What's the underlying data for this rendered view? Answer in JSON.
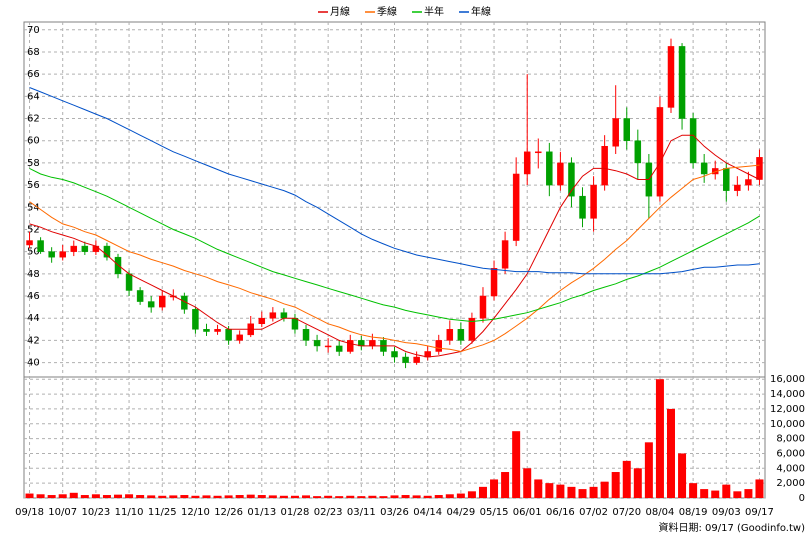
{
  "chart_data": [
    {
      "type": "candlestick",
      "open": [
        50.6,
        51,
        50,
        49.5,
        50,
        50.5,
        50,
        50.5,
        49.5,
        48,
        46.5,
        45.5,
        45,
        46,
        46,
        44.8,
        43,
        42.8,
        43,
        42,
        42.5,
        43.5,
        44,
        44.5,
        44,
        43,
        42,
        41.5,
        41.5,
        41,
        42,
        41.5,
        42,
        41,
        40.5,
        40,
        40.5,
        41,
        42,
        43,
        42,
        44,
        46,
        48.5,
        51,
        57,
        59,
        59,
        56,
        58,
        55,
        53,
        56,
        59.5,
        62,
        60,
        58,
        55,
        63,
        68.5,
        62,
        58,
        57,
        57.5,
        55.5,
        56,
        56.5
      ],
      "high": [
        51.8,
        51.3,
        50.4,
        50.6,
        51,
        50.9,
        51,
        50.8,
        49.8,
        48.3,
        46.8,
        46,
        46.5,
        46.6,
        46.3,
        45,
        43.5,
        43.4,
        43.3,
        42.9,
        44.2,
        44.6,
        45,
        44.9,
        44.4,
        43.4,
        42.5,
        42.2,
        42,
        42.5,
        42.4,
        42.6,
        42.3,
        41.4,
        40.9,
        41,
        41.5,
        42.5,
        43.8,
        43.6,
        44.5,
        46.8,
        49.2,
        51.8,
        58.5,
        66,
        60.2,
        59.8,
        59,
        58.5,
        55.8,
        56.8,
        60.5,
        65,
        63,
        61,
        58.8,
        64,
        69.2,
        68.8,
        62.5,
        58.8,
        58.2,
        58,
        56.8,
        57.2,
        59.2
      ],
      "low": [
        50.3,
        49.8,
        49,
        49.2,
        49.6,
        49.7,
        49.7,
        49.2,
        47.6,
        46,
        45.2,
        44.5,
        44.7,
        45.6,
        44.4,
        42.6,
        42.4,
        42.5,
        41.6,
        41.7,
        42.3,
        43.2,
        43.7,
        43.7,
        42.6,
        41.5,
        41,
        40.9,
        40.6,
        40.8,
        41.1,
        41.2,
        40.6,
        40,
        39.5,
        39.8,
        40.2,
        40.7,
        41.6,
        41.6,
        41.7,
        43.6,
        45.6,
        48,
        50.5,
        56,
        57.5,
        55,
        55.5,
        54,
        52.2,
        51.8,
        55.5,
        58.8,
        59.2,
        56.5,
        53,
        54.5,
        62.5,
        61,
        57.5,
        56.2,
        56.5,
        54.5,
        55,
        55.5,
        56
      ],
      "close": [
        51,
        50,
        49.5,
        50,
        50.5,
        50,
        50.5,
        49.5,
        48,
        46.5,
        45.5,
        45,
        46,
        46,
        44.8,
        43,
        42.8,
        43,
        42,
        42.5,
        43.5,
        44,
        44.5,
        44,
        43,
        42,
        41.5,
        41.5,
        41,
        42,
        41.5,
        42,
        41,
        40.5,
        40,
        40.5,
        41,
        42,
        43,
        42,
        44,
        46,
        48.5,
        51,
        57,
        59,
        59,
        56,
        58,
        55,
        53,
        56,
        59.5,
        62,
        60,
        58,
        55,
        63,
        68.5,
        62,
        58,
        57,
        57.5,
        55.5,
        56,
        56.5,
        58.5
      ],
      "up_color": "#ff0000",
      "down_color": "#00a000",
      "ylim": [
        38.7,
        70.7
      ],
      "yticks": [
        40,
        42,
        44,
        46,
        48,
        50,
        52,
        54,
        56,
        58,
        60,
        62,
        64,
        66,
        68,
        70
      ],
      "grid": true,
      "legend": "top",
      "series": [
        {
          "name": "月線",
          "color": "#e00000",
          "values": [
            52.5,
            52.2,
            51.8,
            51.5,
            51.2,
            50.8,
            50.5,
            49.7,
            48.8,
            48,
            47.5,
            47,
            46.5,
            46,
            45.5,
            45,
            44.3,
            43.6,
            43,
            43,
            43,
            43,
            43.5,
            44,
            44,
            43.5,
            43,
            42.5,
            42,
            41.7,
            41.5,
            41.5,
            41.5,
            41.5,
            41,
            40.7,
            40.5,
            40.6,
            40.8,
            41,
            41.8,
            42.8,
            44,
            45.3,
            46.6,
            48,
            50,
            52,
            54,
            55.5,
            56.8,
            57.5,
            57.5,
            57.3,
            57,
            56.5,
            56.5,
            58,
            60,
            60.5,
            60.5,
            59.5,
            58.7,
            58,
            57.5,
            57,
            56.5
          ]
        },
        {
          "name": "季線",
          "color": "#ff6a00",
          "values": [
            54.5,
            53.8,
            53.1,
            52.5,
            52.2,
            51.8,
            51.5,
            51,
            50.5,
            50,
            49.7,
            49.3,
            49,
            48.7,
            48.3,
            48,
            47.7,
            47.3,
            47,
            46.7,
            46.3,
            46,
            45.7,
            45.3,
            45,
            44.5,
            44,
            43.5,
            43.2,
            42.8,
            42.5,
            42.3,
            42.2,
            42,
            41.8,
            41.7,
            41.5,
            41.3,
            41.2,
            41,
            41.3,
            41.6,
            42,
            42.6,
            43.3,
            44,
            44.8,
            45.7,
            46.5,
            47.2,
            47.8,
            48.5,
            49.3,
            50.2,
            51,
            52,
            53,
            54,
            54.9,
            55.7,
            56.5,
            56.8,
            57.2,
            57.5,
            57.6,
            57.7,
            57.8
          ]
        },
        {
          "name": "半年",
          "color": "#00c000",
          "values": [
            57.5,
            57,
            56.7,
            56.5,
            56.2,
            55.8,
            55.4,
            55,
            54.5,
            54,
            53.5,
            53,
            52.5,
            52,
            51.6,
            51.2,
            50.7,
            50.2,
            49.8,
            49.4,
            49,
            48.6,
            48.2,
            47.9,
            47.6,
            47.3,
            47,
            46.7,
            46.4,
            46.1,
            45.8,
            45.5,
            45.2,
            45,
            44.7,
            44.5,
            44.3,
            44.1,
            43.9,
            43.8,
            43.7,
            43.8,
            43.9,
            44.1,
            44.3,
            44.5,
            44.8,
            45.1,
            45.4,
            45.8,
            46.1,
            46.5,
            46.8,
            47.1,
            47.5,
            47.8,
            48.2,
            48.6,
            49.1,
            49.6,
            50.1,
            50.6,
            51.1,
            51.6,
            52.1,
            52.6,
            53.2
          ]
        },
        {
          "name": "年線",
          "color": "#0050c8",
          "values": [
            64.8,
            64.4,
            64,
            63.6,
            63.2,
            62.8,
            62.4,
            62,
            61.5,
            61,
            60.5,
            60,
            59.5,
            59,
            58.6,
            58.2,
            57.8,
            57.4,
            57,
            56.7,
            56.4,
            56.1,
            55.8,
            55.5,
            55.1,
            54.5,
            54,
            53.4,
            52.8,
            52.2,
            51.6,
            51.1,
            50.7,
            50.3,
            50,
            49.7,
            49.5,
            49.3,
            49.1,
            48.9,
            48.7,
            48.5,
            48.4,
            48.3,
            48.2,
            48.2,
            48.2,
            48.1,
            48.1,
            48.1,
            48,
            48,
            48,
            48,
            48,
            48,
            48,
            48,
            48.1,
            48.2,
            48.4,
            48.6,
            48.6,
            48.7,
            48.8,
            48.8,
            48.9
          ]
        }
      ]
    },
    {
      "type": "bar",
      "categories": [
        "09/18",
        null,
        null,
        "10/07",
        null,
        null,
        "10/23",
        null,
        null,
        "11/10",
        null,
        null,
        "11/25",
        null,
        null,
        "12/10",
        null,
        null,
        "12/26",
        null,
        null,
        "01/13",
        null,
        null,
        "01/28",
        null,
        null,
        "02/23",
        null,
        null,
        "03/11",
        null,
        null,
        "03/26",
        null,
        null,
        "04/14",
        null,
        null,
        "04/29",
        null,
        null,
        "05/15",
        null,
        null,
        "06/01",
        null,
        null,
        "06/16",
        null,
        null,
        "07/02",
        null,
        null,
        "07/20",
        null,
        null,
        "08/04",
        null,
        null,
        "08/19",
        null,
        null,
        "09/03",
        null,
        null,
        "09/17"
      ],
      "values": [
        600,
        500,
        400,
        500,
        700,
        400,
        500,
        400,
        450,
        500,
        400,
        350,
        300,
        350,
        400,
        300,
        350,
        300,
        350,
        400,
        450,
        400,
        350,
        300,
        300,
        350,
        250,
        300,
        250,
        300,
        250,
        300,
        250,
        350,
        400,
        350,
        300,
        400,
        500,
        600,
        900,
        1500,
        2500,
        3500,
        9000,
        4000,
        2500,
        2000,
        1800,
        1500,
        1200,
        1500,
        2200,
        3500,
        5000,
        4000,
        7500,
        16000,
        12000,
        6000,
        2000,
        1200,
        1000,
        1800,
        900,
        1200,
        2500
      ],
      "color": "#ff0000",
      "ylim": [
        0,
        16300
      ],
      "yticks": [
        0,
        {
          "value": 2000,
          "label": "2,000"
        },
        {
          "value": 4000,
          "label": "4,000"
        },
        {
          "value": 6000,
          "label": "6,000"
        },
        {
          "value": 8000,
          "label": "8,000"
        },
        {
          "value": 10000,
          "label": "10,000"
        },
        {
          "value": 12000,
          "label": "12,000"
        },
        {
          "value": 14000,
          "label": "14,000"
        },
        {
          "value": 16000,
          "label": "16,000"
        }
      ],
      "grid": true
    }
  ],
  "footer": "資料日期: 09/17 (Goodinfo.tw)"
}
